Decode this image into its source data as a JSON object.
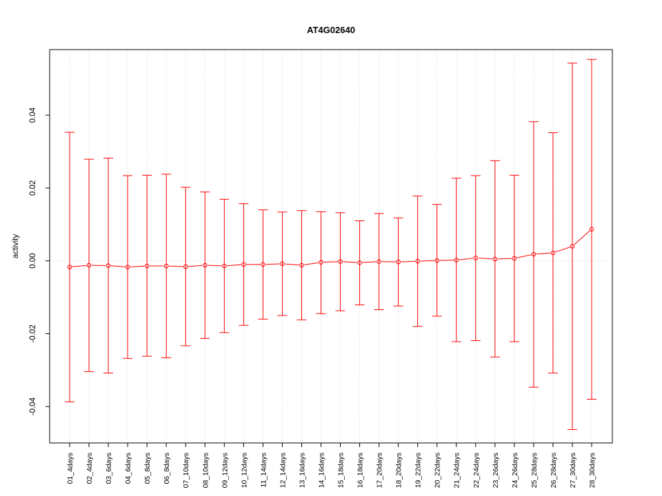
{
  "chart_data": {
    "type": "line",
    "title": "AT4G02640",
    "xlabel": "",
    "ylabel": "activity",
    "ylim": [
      -0.05,
      0.058
    ],
    "yticks": [
      -0.04,
      -0.02,
      0.0,
      0.02,
      0.04
    ],
    "ytick_labels": [
      "-0.04",
      "-0.02",
      "0.00",
      "0.02",
      "0.04"
    ],
    "grid": true,
    "reference_line": 0.0,
    "colors": {
      "series": "#ff0000",
      "grid": "#d3d3d3",
      "axis": "#000000"
    },
    "categories": [
      "01_4days",
      "02_4days",
      "03_6days",
      "04_6days",
      "05_8days",
      "06_8days",
      "07_10days",
      "08_10days",
      "09_12days",
      "10_12days",
      "11_14days",
      "12_14days",
      "13_16days",
      "14_16days",
      "15_18days",
      "16_18days",
      "17_20days",
      "18_20days",
      "19_22days",
      "20_22days",
      "21_24days",
      "22_24days",
      "23_26days",
      "24_26days",
      "25_28days",
      "26_28days",
      "27_30days",
      "28_30days"
    ],
    "series": [
      {
        "values": [
          -0.0017,
          -0.0012,
          -0.0013,
          -0.0017,
          -0.0014,
          -0.0014,
          -0.0016,
          -0.0012,
          -0.0014,
          -0.001,
          -0.001,
          -0.0008,
          -0.0012,
          -0.0004,
          -0.0002,
          -0.0005,
          -0.0002,
          -0.0003,
          -0.0001,
          0.0001,
          0.0002,
          0.0008,
          0.0005,
          0.0007,
          0.0018,
          0.0022,
          0.004,
          0.0087
        ],
        "upper": [
          0.0353,
          0.0279,
          0.0282,
          0.0234,
          0.0235,
          0.0238,
          0.0202,
          0.0189,
          0.0169,
          0.0157,
          0.014,
          0.0134,
          0.0138,
          0.0135,
          0.0132,
          0.011,
          0.013,
          0.0118,
          0.0178,
          0.0155,
          0.0227,
          0.0234,
          0.0275,
          0.0235,
          0.0382,
          0.0352,
          0.0543,
          0.0553
        ],
        "lower": [
          -0.0387,
          -0.0304,
          -0.0308,
          -0.0268,
          -0.0262,
          -0.0266,
          -0.0233,
          -0.0213,
          -0.0197,
          -0.0177,
          -0.016,
          -0.015,
          -0.0162,
          -0.0145,
          -0.0137,
          -0.0121,
          -0.0134,
          -0.0124,
          -0.018,
          -0.0152,
          -0.0222,
          -0.0219,
          -0.0264,
          -0.0222,
          -0.0347,
          -0.0308,
          -0.0463,
          -0.038
        ]
      }
    ]
  }
}
